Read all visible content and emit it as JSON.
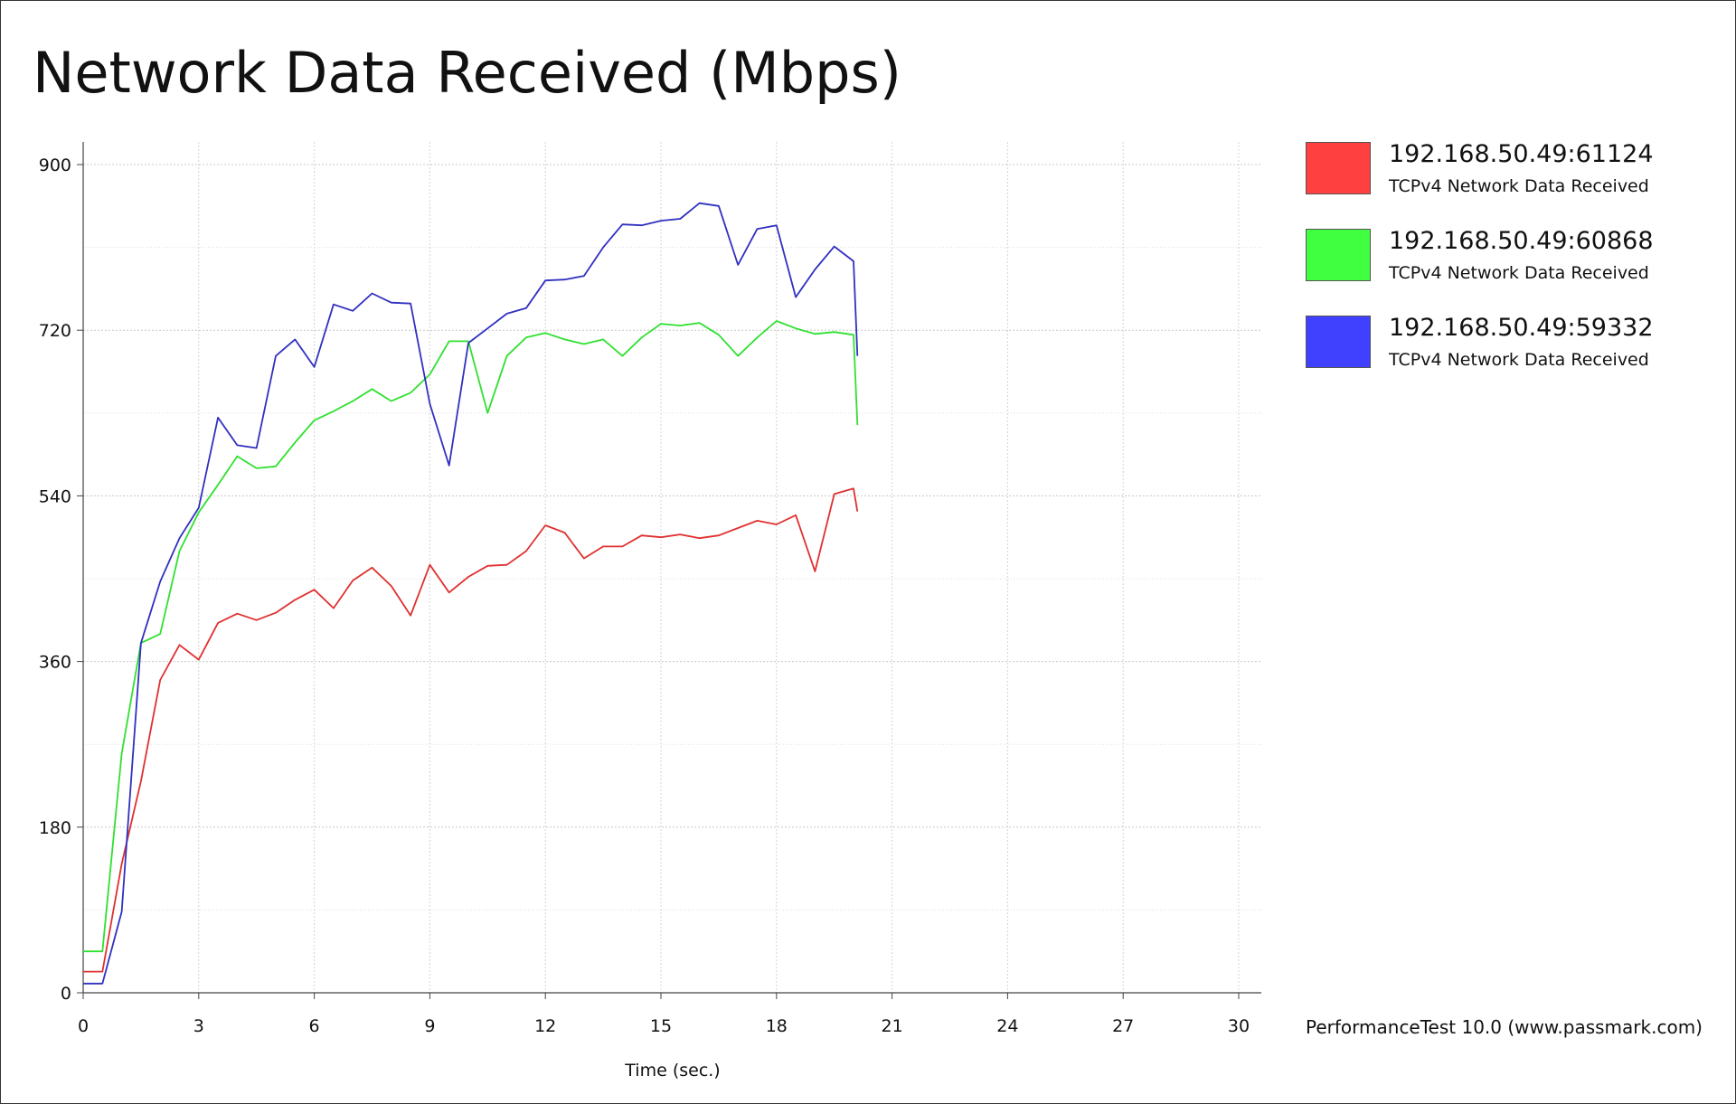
{
  "chart_data": {
    "type": "line",
    "title": "Network Data Received (Mbps)",
    "xlabel": "Time (sec.)",
    "ylabel": "",
    "xlim": [
      0,
      30
    ],
    "ylim": [
      0,
      900
    ],
    "x_ticks": [
      0,
      3,
      6,
      9,
      12,
      15,
      18,
      21,
      24,
      27,
      30
    ],
    "y_ticks": [
      0,
      180,
      360,
      540,
      720,
      900
    ],
    "grid": true,
    "legend_position": "right",
    "series": [
      {
        "name": "192.168.50.49:61124",
        "subtitle": "TCPv4 Network Data Received",
        "color": "#ff4040",
        "line_color": "#e03030",
        "points": [
          [
            0,
            23
          ],
          [
            0.5,
            23
          ],
          [
            1,
            140
          ],
          [
            1.5,
            230
          ],
          [
            2,
            340
          ],
          [
            2.5,
            378
          ],
          [
            3,
            362
          ],
          [
            3.5,
            402
          ],
          [
            4,
            412
          ],
          [
            4.5,
            405
          ],
          [
            5,
            413
          ],
          [
            5.5,
            427
          ],
          [
            6,
            438
          ],
          [
            6.5,
            418
          ],
          [
            7,
            448
          ],
          [
            7.5,
            462
          ],
          [
            8,
            442
          ],
          [
            8.5,
            410
          ],
          [
            9,
            465
          ],
          [
            9.5,
            435
          ],
          [
            10,
            452
          ],
          [
            10.5,
            464
          ],
          [
            11,
            465
          ],
          [
            11.5,
            480
          ],
          [
            12,
            508
          ],
          [
            12.5,
            500
          ],
          [
            13,
            472
          ],
          [
            13.5,
            485
          ],
          [
            14,
            485
          ],
          [
            14.5,
            497
          ],
          [
            15,
            495
          ],
          [
            15.5,
            498
          ],
          [
            16,
            494
          ],
          [
            16.5,
            497
          ],
          [
            17,
            505
          ],
          [
            17.5,
            513
          ],
          [
            18,
            509
          ],
          [
            18.5,
            519
          ],
          [
            19,
            458
          ],
          [
            19.5,
            542
          ],
          [
            20,
            548
          ],
          [
            20.1,
            523
          ]
        ]
      },
      {
        "name": "192.168.50.49:60868",
        "subtitle": "TCPv4 Network Data Received",
        "color": "#40ff40",
        "line_color": "#30e030",
        "points": [
          [
            0,
            45
          ],
          [
            0.5,
            45
          ],
          [
            1,
            260
          ],
          [
            1.5,
            380
          ],
          [
            2,
            390
          ],
          [
            2.5,
            480
          ],
          [
            3,
            522
          ],
          [
            3.5,
            552
          ],
          [
            4,
            583
          ],
          [
            4.5,
            570
          ],
          [
            5,
            572
          ],
          [
            5.5,
            598
          ],
          [
            6,
            622
          ],
          [
            6.5,
            632
          ],
          [
            7,
            643
          ],
          [
            7.5,
            656
          ],
          [
            8,
            643
          ],
          [
            8.5,
            652
          ],
          [
            9,
            672
          ],
          [
            9.5,
            708
          ],
          [
            10,
            708
          ],
          [
            10.5,
            630
          ],
          [
            11,
            692
          ],
          [
            11.5,
            712
          ],
          [
            12,
            717
          ],
          [
            12.5,
            710
          ],
          [
            13,
            705
          ],
          [
            13.5,
            710
          ],
          [
            14,
            692
          ],
          [
            14.5,
            712
          ],
          [
            15,
            727
          ],
          [
            15.5,
            725
          ],
          [
            16,
            728
          ],
          [
            16.5,
            715
          ],
          [
            17,
            692
          ],
          [
            17.5,
            712
          ],
          [
            18,
            730
          ],
          [
            18.5,
            722
          ],
          [
            19,
            716
          ],
          [
            19.5,
            718
          ],
          [
            20,
            715
          ],
          [
            20.1,
            617
          ]
        ]
      },
      {
        "name": "192.168.50.49:59332",
        "subtitle": "TCPv4 Network Data Received",
        "color": "#4040ff",
        "line_color": "#3030c0",
        "points": [
          [
            0,
            10
          ],
          [
            0.5,
            10
          ],
          [
            1,
            88
          ],
          [
            1.5,
            380
          ],
          [
            2,
            447
          ],
          [
            2.5,
            494
          ],
          [
            3,
            527
          ],
          [
            3.5,
            625
          ],
          [
            4,
            595
          ],
          [
            4.5,
            592
          ],
          [
            5,
            692
          ],
          [
            5.5,
            710
          ],
          [
            6,
            680
          ],
          [
            6.5,
            748
          ],
          [
            7,
            741
          ],
          [
            7.5,
            760
          ],
          [
            8,
            750
          ],
          [
            8.5,
            749
          ],
          [
            9,
            640
          ],
          [
            9.5,
            573
          ],
          [
            10,
            706
          ],
          [
            10.5,
            722
          ],
          [
            11,
            738
          ],
          [
            11.5,
            744
          ],
          [
            12,
            774
          ],
          [
            12.5,
            775
          ],
          [
            13,
            779
          ],
          [
            13.5,
            810
          ],
          [
            14,
            835
          ],
          [
            14.5,
            834
          ],
          [
            15,
            839
          ],
          [
            15.5,
            841
          ],
          [
            16,
            858
          ],
          [
            16.5,
            855
          ],
          [
            17,
            791
          ],
          [
            17.5,
            830
          ],
          [
            18,
            834
          ],
          [
            18.5,
            756
          ],
          [
            19,
            786
          ],
          [
            19.5,
            811
          ],
          [
            20,
            795
          ],
          [
            20.1,
            692
          ]
        ]
      }
    ]
  },
  "footer": "PerformanceTest 10.0 (www.passmark.com)"
}
